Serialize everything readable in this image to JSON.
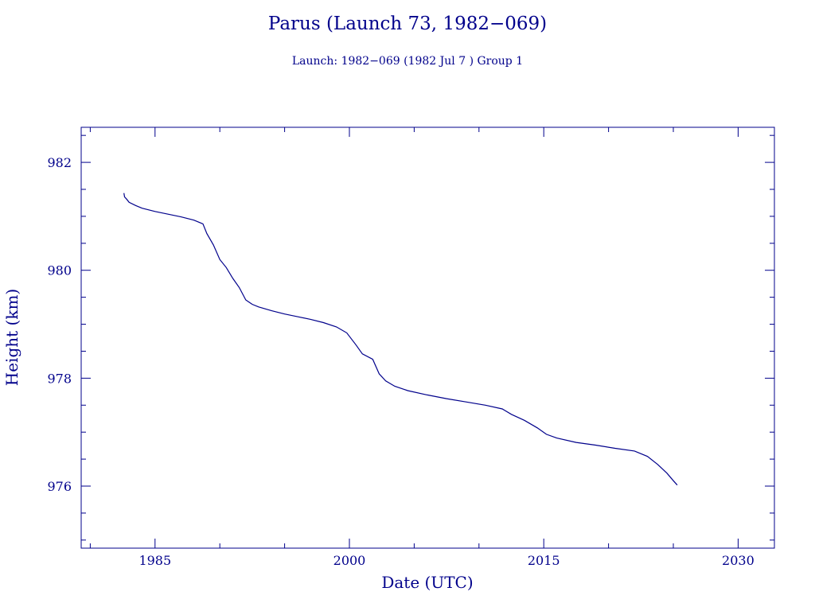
{
  "chart_data": {
    "type": "line",
    "title": "Parus (Launch 73, 1982−069)",
    "subtitle": "Launch: 1982−069  (1982 Jul  7 )  Group 1",
    "xlabel": "Date (UTC)",
    "ylabel": "Height (km)",
    "xlim": [
      1979.3,
      2032.8
    ],
    "ylim": [
      974.85,
      982.65
    ],
    "xticks": [
      1985,
      2000,
      2015,
      2030
    ],
    "xtick_labels": [
      "1985",
      "2000",
      "2015",
      "2030"
    ],
    "yticks": [
      976,
      978,
      980,
      982
    ],
    "ytick_labels": [
      "976",
      "978",
      "980",
      "982"
    ],
    "grid": false,
    "series": [
      {
        "x": [
          1982.6,
          1982.65,
          1982.8,
          1983.0,
          1983.5,
          1984.0,
          1985.0,
          1986.0,
          1987.0,
          1988.0,
          1988.7,
          1989.0,
          1989.5,
          1990.0,
          1990.5,
          1991.0,
          1991.5,
          1992.0,
          1992.5,
          1993.0,
          1994.0,
          1995.0,
          1996.0,
          1997.0,
          1998.0,
          1999.0,
          1999.8,
          2000.5,
          2001.0,
          2001.8,
          2002.3,
          2002.8,
          2003.5,
          2004.5,
          2006.0,
          2007.5,
          2009.0,
          2010.5,
          2011.8,
          2012.5,
          2013.5,
          2014.5,
          2015.2,
          2016.0,
          2017.5,
          2019.0,
          2020.5,
          2022.0,
          2023.0,
          2023.8,
          2024.5,
          2025.0,
          2025.3
        ],
        "y": [
          981.43,
          981.36,
          981.32,
          981.26,
          981.2,
          981.15,
          981.09,
          981.04,
          980.99,
          980.93,
          980.86,
          980.68,
          980.47,
          980.2,
          980.05,
          979.85,
          979.68,
          979.45,
          979.37,
          979.32,
          979.25,
          979.19,
          979.14,
          979.09,
          979.03,
          978.95,
          978.84,
          978.62,
          978.45,
          978.35,
          978.08,
          977.95,
          977.85,
          977.77,
          977.69,
          977.62,
          977.56,
          977.5,
          977.43,
          977.33,
          977.22,
          977.08,
          976.96,
          976.89,
          976.81,
          976.76,
          976.7,
          976.65,
          976.55,
          976.4,
          976.24,
          976.1,
          976.02
        ]
      }
    ]
  }
}
